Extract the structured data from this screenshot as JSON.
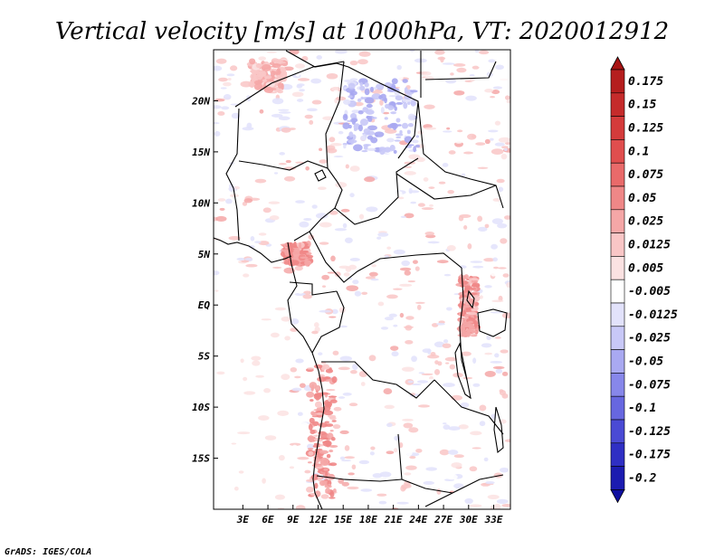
{
  "chart_data": {
    "type": "heatmap",
    "title": "Vertical velocity [m/s] at 1000hPa, VT: 2020012912",
    "variable": "Vertical velocity",
    "units": "m/s",
    "level": "1000hPa",
    "valid_time": "2020012912",
    "x_range_deg_east": [
      -0.5,
      35
    ],
    "y_range_deg_north": [
      -20,
      25
    ],
    "x_ticks": [
      {
        "value": 3,
        "label": "3E"
      },
      {
        "value": 6,
        "label": "6E"
      },
      {
        "value": 9,
        "label": "9E"
      },
      {
        "value": 12,
        "label": "12E"
      },
      {
        "value": 15,
        "label": "15E"
      },
      {
        "value": 18,
        "label": "18E"
      },
      {
        "value": 21,
        "label": "21E"
      },
      {
        "value": 24,
        "label": "24E"
      },
      {
        "value": 27,
        "label": "27E"
      },
      {
        "value": 30,
        "label": "30E"
      },
      {
        "value": 33,
        "label": "33E"
      }
    ],
    "y_ticks": [
      {
        "value": 20,
        "label": "20N"
      },
      {
        "value": 15,
        "label": "15N"
      },
      {
        "value": 10,
        "label": "10N"
      },
      {
        "value": 5,
        "label": "5N"
      },
      {
        "value": 0,
        "label": "EQ"
      },
      {
        "value": -5,
        "label": "5S"
      },
      {
        "value": -10,
        "label": "10S"
      },
      {
        "value": -15,
        "label": "15S"
      }
    ],
    "colorbar": {
      "levels": [
        {
          "label": "0.175",
          "color": "#b51e1e"
        },
        {
          "label": "0.15",
          "color": "#c52b2b"
        },
        {
          "label": "0.125",
          "color": "#d43b3b"
        },
        {
          "label": "0.1",
          "color": "#e04e4e"
        },
        {
          "label": "0.075",
          "color": "#e96a6a"
        },
        {
          "label": "0.05",
          "color": "#ef8787"
        },
        {
          "label": "0.025",
          "color": "#f5a7a7"
        },
        {
          "label": "0.0125",
          "color": "#f9c6c6"
        },
        {
          "label": "0.005",
          "color": "#fbe2e2"
        },
        {
          "label": "-0.005",
          "color": "#ffffff"
        },
        {
          "label": "-0.0125",
          "color": "#e2e2fb"
        },
        {
          "label": "-0.025",
          "color": "#c8c8f7"
        },
        {
          "label": "-0.05",
          "color": "#a9a9f1"
        },
        {
          "label": "-0.075",
          "color": "#8787ea"
        },
        {
          "label": "-0.1",
          "color": "#6767e0"
        },
        {
          "label": "-0.125",
          "color": "#4a4ad4"
        },
        {
          "label": "-0.175",
          "color": "#2f2fc4"
        },
        {
          "label": "-0.2",
          "color": "#1c1cb0"
        }
      ],
      "over_color": "#a81414",
      "under_color": "#1010a0"
    },
    "features": [
      {
        "name": "coastal upward motion Cameroon/Nigeria",
        "lon": [
          8,
          11
        ],
        "lat": [
          4,
          6
        ],
        "value": 0.05
      },
      {
        "name": "upward motion Angola/Namibia coast",
        "lon": [
          11,
          14
        ],
        "lat": [
          -19,
          -6
        ],
        "value": 0.05
      },
      {
        "name": "upward motion western Great Lakes",
        "lon": [
          29,
          31
        ],
        "lat": [
          -3,
          3
        ],
        "value": 0.05
      },
      {
        "name": "downward motion Sudan/Chad",
        "lon": [
          15,
          24
        ],
        "lat": [
          15,
          22
        ],
        "value": -0.05
      },
      {
        "name": "upward motion Sahara Libya",
        "lon": [
          4,
          8
        ],
        "lat": [
          21,
          24
        ],
        "value": 0.025
      }
    ]
  },
  "credit": "GrADS: IGES/COLA"
}
